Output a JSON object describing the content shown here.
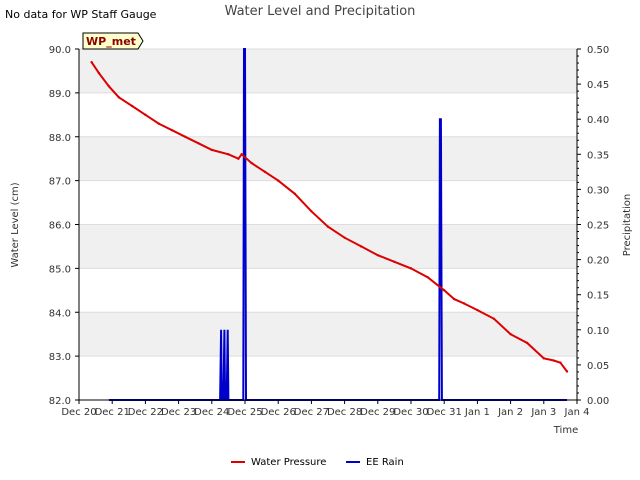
{
  "page": {
    "note": "No data for WP Staff Gauge"
  },
  "chart_data": {
    "type": "line",
    "title": "Water Level and Precipitation",
    "xlabel": "Time",
    "ylabel_left": "Water Level (cm)",
    "ylabel_right": "Precipitation",
    "station_badge": "WP_met",
    "x_tick_labels": [
      "Dec 20",
      "Dec 21",
      "Dec 22",
      "Dec 23",
      "Dec 24",
      "Dec 25",
      "Dec 26",
      "Dec 27",
      "Dec 28",
      "Dec 29",
      "Dec 30",
      "Dec 31",
      "Jan 1",
      "Jan 2",
      "Jan 3",
      "Jan 4"
    ],
    "xlim_days": [
      0,
      15
    ],
    "y_left_ticks": [
      "82.0",
      "83.0",
      "84.0",
      "85.0",
      "86.0",
      "87.0",
      "88.0",
      "89.0",
      "90.0"
    ],
    "ylim_left": [
      82.0,
      90.0
    ],
    "y_right_ticks": [
      "0.00",
      "0.05",
      "0.10",
      "0.15",
      "0.20",
      "0.25",
      "0.30",
      "0.35",
      "0.40",
      "0.45",
      "0.50"
    ],
    "ylim_right": [
      0.0,
      0.5
    ],
    "grid": true,
    "legend_position": "bottom-center",
    "colors": {
      "water_pressure": "#dd0000",
      "ee_rain": "#0000cc",
      "band": "#f0f0f0",
      "badge_fill": "#ffffcc",
      "badge_text": "#8b0000"
    },
    "series": [
      {
        "name": "Water Pressure",
        "axis": "left",
        "x": [
          0.38,
          0.6,
          0.9,
          1.2,
          1.6,
          2.0,
          2.4,
          2.8,
          3.2,
          3.6,
          4.0,
          4.5,
          4.8,
          4.9,
          5.2,
          5.6,
          6.0,
          6.5,
          7.0,
          7.5,
          8.0,
          8.5,
          9.0,
          9.5,
          10.0,
          10.5,
          11.0,
          11.3,
          11.6,
          12.0,
          12.5,
          13.0,
          13.5,
          14.0,
          14.3,
          14.5,
          14.7
        ],
        "y": [
          89.7,
          89.45,
          89.15,
          88.9,
          88.7,
          88.5,
          88.3,
          88.15,
          88.0,
          87.85,
          87.7,
          87.6,
          87.5,
          87.6,
          87.4,
          87.2,
          87.0,
          86.7,
          86.3,
          85.95,
          85.7,
          85.5,
          85.3,
          85.15,
          85.0,
          84.8,
          84.5,
          84.3,
          84.2,
          84.05,
          83.85,
          83.5,
          83.3,
          82.95,
          82.9,
          82.85,
          82.65
        ]
      },
      {
        "name": "EE Rain",
        "axis": "right",
        "x": [
          0.9,
          4.25,
          4.28,
          4.3,
          4.35,
          4.38,
          4.4,
          4.45,
          4.48,
          4.5,
          4.95,
          4.97,
          5.0,
          5.03,
          10.85,
          10.87,
          10.9,
          10.93,
          14.7
        ],
        "y": [
          0,
          0,
          0.1,
          0,
          0,
          0.1,
          0,
          0,
          0.1,
          0,
          0,
          0.5,
          0.5,
          0,
          0,
          0.4,
          0.4,
          0,
          0
        ]
      }
    ]
  }
}
